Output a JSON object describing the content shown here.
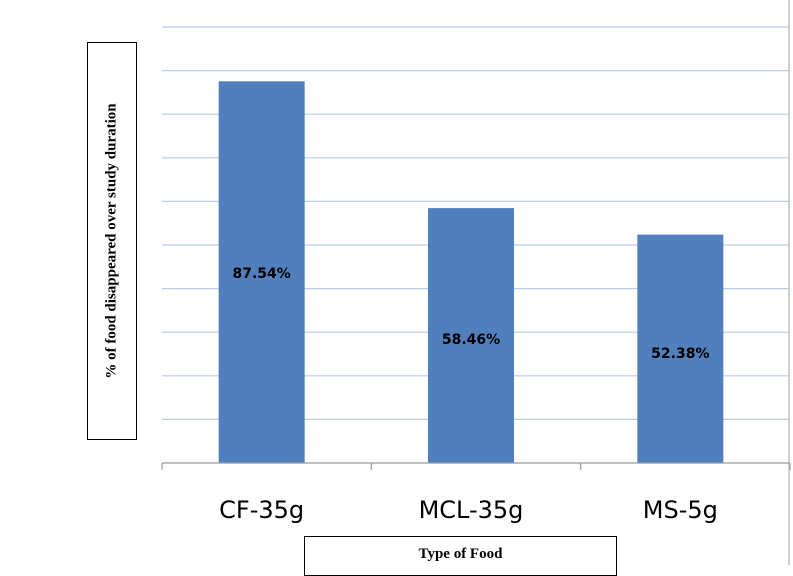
{
  "chart_data": {
    "type": "bar",
    "categories": [
      "CF-35g",
      "MCL-35g",
      "MS-5g"
    ],
    "values": [
      87.54,
      58.46,
      52.38
    ],
    "data_labels": [
      "87.54%",
      "58.46%",
      "52.38%"
    ],
    "xlabel": "Type of Food",
    "ylabel": "%  of food disappeared over study duration",
    "ylim": [
      0,
      100
    ],
    "grid": true,
    "colors": {
      "bar": "#4f7fbd",
      "grid": "#b9cde6",
      "axis": "#9a9a9a"
    }
  }
}
